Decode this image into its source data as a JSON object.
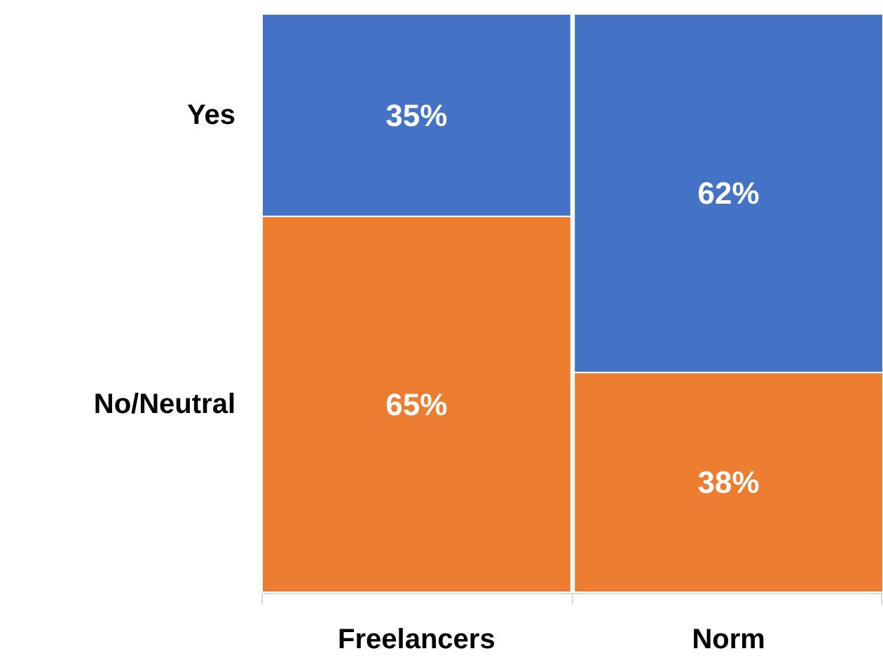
{
  "chart_data": {
    "type": "bar",
    "stacked": true,
    "categories": [
      "Freelancers",
      "Norm"
    ],
    "legend": "left",
    "series": [
      {
        "name": "No/Neutral",
        "color": "#ed7d31",
        "values": [
          65,
          38
        ],
        "value_labels": [
          "65%",
          "38%"
        ]
      },
      {
        "name": "Yes",
        "color": "#4472c4",
        "values": [
          35,
          62
        ],
        "value_labels": [
          "35%",
          "62%"
        ]
      }
    ]
  }
}
